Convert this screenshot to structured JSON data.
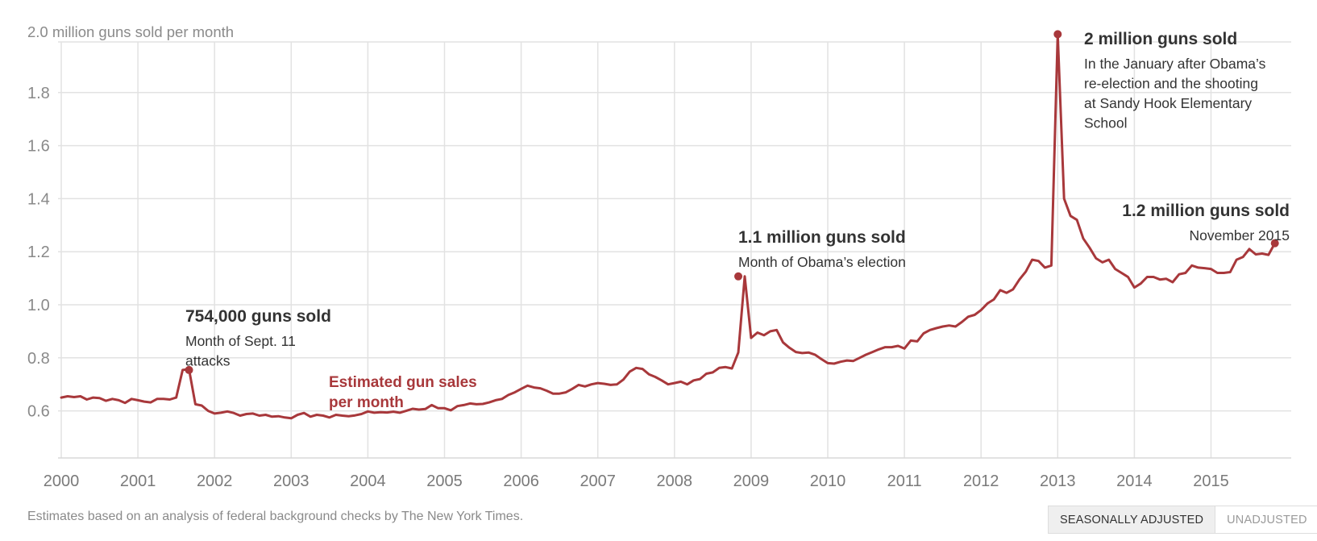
{
  "chart_data": {
    "type": "line",
    "y_axis_title": "2.0 million guns sold per month",
    "ylim": [
      0.5,
      2.05
    ],
    "yticks": [
      0.6,
      0.8,
      1.0,
      1.2,
      1.4,
      1.6,
      1.8
    ],
    "ytick_labels": [
      "0.6",
      "0.8",
      "1.0",
      "1.2",
      "1.4",
      "1.6",
      "1.8"
    ],
    "xlim": [
      2000,
      2016
    ],
    "xticks": [
      2000,
      2001,
      2002,
      2003,
      2004,
      2005,
      2006,
      2007,
      2008,
      2009,
      2010,
      2011,
      2012,
      2013,
      2014,
      2015
    ],
    "xtick_labels": [
      "2000",
      "2001",
      "2002",
      "2003",
      "2004",
      "2005",
      "2006",
      "2007",
      "2008",
      "2009",
      "2010",
      "2011",
      "2012",
      "2013",
      "2014",
      "2015"
    ],
    "series": [
      {
        "name": "Estimated gun sales per month",
        "color": "#a8383b",
        "start": 2000,
        "values": [
          0.65,
          0.655,
          0.652,
          0.655,
          0.643,
          0.65,
          0.648,
          0.638,
          0.645,
          0.64,
          0.63,
          0.645,
          0.64,
          0.635,
          0.632,
          0.645,
          0.645,
          0.643,
          0.65,
          0.754,
          0.757,
          0.625,
          0.62,
          0.6,
          0.59,
          0.593,
          0.598,
          0.592,
          0.582,
          0.588,
          0.59,
          0.582,
          0.585,
          0.578,
          0.58,
          0.575,
          0.572,
          0.585,
          0.592,
          0.578,
          0.585,
          0.582,
          0.575,
          0.585,
          0.582,
          0.58,
          0.583,
          0.588,
          0.598,
          0.593,
          0.595,
          0.594,
          0.597,
          0.593,
          0.6,
          0.608,
          0.605,
          0.607,
          0.622,
          0.61,
          0.61,
          0.602,
          0.618,
          0.622,
          0.628,
          0.625,
          0.626,
          0.632,
          0.64,
          0.645,
          0.66,
          0.67,
          0.683,
          0.695,
          0.688,
          0.685,
          0.676,
          0.665,
          0.665,
          0.67,
          0.683,
          0.698,
          0.692,
          0.7,
          0.705,
          0.702,
          0.698,
          0.7,
          0.718,
          0.748,
          0.762,
          0.758,
          0.738,
          0.728,
          0.715,
          0.7,
          0.705,
          0.71,
          0.7,
          0.715,
          0.72,
          0.74,
          0.745,
          0.762,
          0.765,
          0.76,
          0.82,
          1.107,
          0.875,
          0.895,
          0.885,
          0.9,
          0.905,
          0.858,
          0.838,
          0.822,
          0.818,
          0.82,
          0.812,
          0.795,
          0.78,
          0.778,
          0.785,
          0.79,
          0.788,
          0.8,
          0.812,
          0.822,
          0.832,
          0.84,
          0.84,
          0.845,
          0.835,
          0.865,
          0.862,
          0.892,
          0.905,
          0.912,
          0.918,
          0.922,
          0.918,
          0.935,
          0.955,
          0.962,
          0.98,
          1.005,
          1.02,
          1.055,
          1.045,
          1.058,
          1.095,
          1.125,
          1.17,
          1.165,
          1.14,
          1.148,
          2.02,
          1.4,
          1.335,
          1.32,
          1.25,
          1.215,
          1.175,
          1.16,
          1.17,
          1.135,
          1.12,
          1.105,
          1.065,
          1.08,
          1.105,
          1.105,
          1.095,
          1.098,
          1.085,
          1.115,
          1.12,
          1.148,
          1.14,
          1.138,
          1.135,
          1.12,
          1.12,
          1.123,
          1.17,
          1.18,
          1.21,
          1.19,
          1.193,
          1.188,
          1.232
        ]
      }
    ],
    "series_label": [
      "Estimated gun sales",
      "per month"
    ],
    "annotations": [
      {
        "x": 2001.667,
        "y": 0.754,
        "title": "754,000 guns sold",
        "lines": [
          "Month of Sept. 11",
          "attacks"
        ]
      },
      {
        "x": 2008.833,
        "y": 1.107,
        "title": "1.1 million guns sold",
        "lines": [
          "Month of Obama’s election"
        ]
      },
      {
        "x": 2013.0,
        "y": 2.02,
        "title": "2 million guns sold",
        "lines": [
          "In the January after Obama’s",
          "re-election and the shooting",
          "at Sandy Hook Elementary",
          "School"
        ]
      },
      {
        "x": 2015.833,
        "y": 1.232,
        "title": "1.2 million guns sold",
        "lines": [
          "November 2015"
        ]
      }
    ]
  },
  "footer": {
    "source": "Estimates based on an analysis of federal background checks by The New York Times.",
    "toggle": {
      "active": "SEASONALLY ADJUSTED",
      "inactive": "UNADJUSTED"
    }
  }
}
